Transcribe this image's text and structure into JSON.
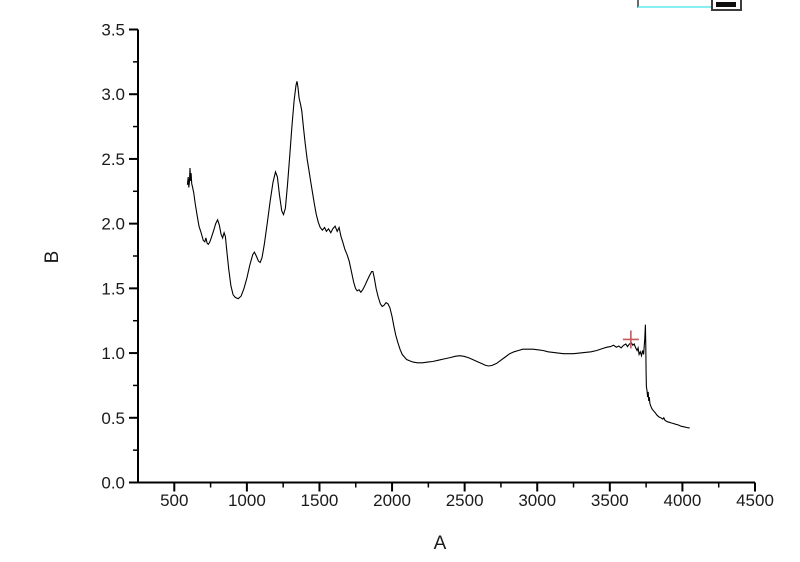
{
  "window": {
    "background": "#ffffff"
  },
  "overlay": {
    "annotation_box": {
      "underline_color": "#86efef",
      "border_color": "#6a6a6a"
    },
    "minimize_button": {
      "icon": "minus-dash",
      "border_color": "#3c3c3c",
      "glyph_color": "#0d0d0d"
    }
  },
  "chart_data": {
    "type": "line",
    "title": "",
    "xlabel": "A",
    "ylabel": "B",
    "xlim": [
      250,
      4500
    ],
    "ylim": [
      0,
      3.5
    ],
    "grid": false,
    "legend_position": "none",
    "axis_color": "#000000",
    "tick_style": "outward",
    "x_ticks": {
      "values": [
        500,
        1000,
        1500,
        2000,
        2500,
        3000,
        3500,
        4000,
        4500
      ],
      "labels": [
        "500",
        "1000",
        "1500",
        "2000",
        "2500",
        "3000",
        "3500",
        "4000",
        "4500"
      ],
      "minor": [
        750,
        1250,
        1750,
        2250,
        2750,
        3250,
        3750,
        4250
      ]
    },
    "y_ticks": {
      "values": [
        0,
        0.5,
        1.0,
        1.5,
        2.0,
        2.5,
        3.0,
        3.5
      ],
      "labels": [
        "0.0",
        "0.5",
        "1.0",
        "1.5",
        "2.0",
        "2.5",
        "3.0",
        "3.5"
      ],
      "minor": [
        0.25,
        0.75,
        1.25,
        1.75,
        2.25,
        2.75,
        3.25
      ]
    },
    "series": [
      {
        "name": "B",
        "color": "#000000",
        "points": [
          [
            590,
            2.3
          ],
          [
            596,
            2.36
          ],
          [
            600,
            2.28
          ],
          [
            605,
            2.33
          ],
          [
            608,
            2.43
          ],
          [
            612,
            2.33
          ],
          [
            616,
            2.39
          ],
          [
            620,
            2.31
          ],
          [
            626,
            2.28
          ],
          [
            634,
            2.24
          ],
          [
            645,
            2.15
          ],
          [
            658,
            2.06
          ],
          [
            670,
            1.98
          ],
          [
            682,
            1.94
          ],
          [
            692,
            1.9
          ],
          [
            700,
            1.87
          ],
          [
            710,
            1.86
          ],
          [
            718,
            1.89
          ],
          [
            726,
            1.85
          ],
          [
            734,
            1.84
          ],
          [
            745,
            1.86
          ],
          [
            758,
            1.9
          ],
          [
            772,
            1.95
          ],
          [
            785,
            2.0
          ],
          [
            798,
            2.03
          ],
          [
            810,
            1.99
          ],
          [
            822,
            1.92
          ],
          [
            833,
            1.89
          ],
          [
            843,
            1.93
          ],
          [
            852,
            1.9
          ],
          [
            862,
            1.79
          ],
          [
            875,
            1.65
          ],
          [
            890,
            1.52
          ],
          [
            905,
            1.45
          ],
          [
            920,
            1.43
          ],
          [
            940,
            1.42
          ],
          [
            960,
            1.44
          ],
          [
            980,
            1.5
          ],
          [
            1000,
            1.58
          ],
          [
            1020,
            1.68
          ],
          [
            1040,
            1.76
          ],
          [
            1052,
            1.78
          ],
          [
            1065,
            1.75
          ],
          [
            1080,
            1.71
          ],
          [
            1092,
            1.7
          ],
          [
            1105,
            1.74
          ],
          [
            1120,
            1.84
          ],
          [
            1140,
            2.0
          ],
          [
            1160,
            2.17
          ],
          [
            1180,
            2.32
          ],
          [
            1197,
            2.4
          ],
          [
            1210,
            2.36
          ],
          [
            1225,
            2.22
          ],
          [
            1240,
            2.1
          ],
          [
            1252,
            2.07
          ],
          [
            1265,
            2.12
          ],
          [
            1280,
            2.3
          ],
          [
            1295,
            2.52
          ],
          [
            1310,
            2.75
          ],
          [
            1325,
            2.95
          ],
          [
            1338,
            3.07
          ],
          [
            1345,
            3.1
          ],
          [
            1352,
            3.05
          ],
          [
            1360,
            2.97
          ],
          [
            1370,
            2.92
          ],
          [
            1378,
            2.87
          ],
          [
            1390,
            2.74
          ],
          [
            1402,
            2.62
          ],
          [
            1415,
            2.5
          ],
          [
            1428,
            2.41
          ],
          [
            1440,
            2.32
          ],
          [
            1452,
            2.24
          ],
          [
            1465,
            2.15
          ],
          [
            1478,
            2.07
          ],
          [
            1492,
            2.01
          ],
          [
            1505,
            1.97
          ],
          [
            1520,
            1.95
          ],
          [
            1535,
            1.97
          ],
          [
            1548,
            1.94
          ],
          [
            1562,
            1.96
          ],
          [
            1578,
            1.93
          ],
          [
            1592,
            1.96
          ],
          [
            1608,
            1.98
          ],
          [
            1622,
            1.94
          ],
          [
            1635,
            1.97
          ],
          [
            1648,
            1.9
          ],
          [
            1660,
            1.86
          ],
          [
            1675,
            1.8
          ],
          [
            1690,
            1.76
          ],
          [
            1705,
            1.71
          ],
          [
            1720,
            1.63
          ],
          [
            1735,
            1.55
          ],
          [
            1748,
            1.5
          ],
          [
            1760,
            1.48
          ],
          [
            1772,
            1.49
          ],
          [
            1785,
            1.47
          ],
          [
            1798,
            1.49
          ],
          [
            1812,
            1.52
          ],
          [
            1828,
            1.56
          ],
          [
            1845,
            1.6
          ],
          [
            1860,
            1.63
          ],
          [
            1868,
            1.63
          ],
          [
            1878,
            1.58
          ],
          [
            1890,
            1.5
          ],
          [
            1905,
            1.43
          ],
          [
            1920,
            1.38
          ],
          [
            1932,
            1.36
          ],
          [
            1945,
            1.37
          ],
          [
            1958,
            1.39
          ],
          [
            1972,
            1.38
          ],
          [
            1985,
            1.35
          ],
          [
            2000,
            1.28
          ],
          [
            2012,
            1.21
          ],
          [
            2025,
            1.14
          ],
          [
            2040,
            1.08
          ],
          [
            2055,
            1.03
          ],
          [
            2070,
            0.99
          ],
          [
            2085,
            0.97
          ],
          [
            2100,
            0.95
          ],
          [
            2120,
            0.94
          ],
          [
            2145,
            0.93
          ],
          [
            2175,
            0.925
          ],
          [
            2210,
            0.925
          ],
          [
            2245,
            0.93
          ],
          [
            2280,
            0.935
          ],
          [
            2320,
            0.945
          ],
          [
            2360,
            0.955
          ],
          [
            2400,
            0.965
          ],
          [
            2435,
            0.975
          ],
          [
            2465,
            0.98
          ],
          [
            2495,
            0.975
          ],
          [
            2525,
            0.965
          ],
          [
            2555,
            0.95
          ],
          [
            2585,
            0.935
          ],
          [
            2615,
            0.92
          ],
          [
            2645,
            0.905
          ],
          [
            2665,
            0.9
          ],
          [
            2690,
            0.905
          ],
          [
            2720,
            0.92
          ],
          [
            2750,
            0.945
          ],
          [
            2780,
            0.97
          ],
          [
            2810,
            0.995
          ],
          [
            2840,
            1.01
          ],
          [
            2870,
            1.02
          ],
          [
            2900,
            1.03
          ],
          [
            2935,
            1.03
          ],
          [
            2970,
            1.03
          ],
          [
            3005,
            1.025
          ],
          [
            3040,
            1.02
          ],
          [
            3075,
            1.01
          ],
          [
            3110,
            1.005
          ],
          [
            3145,
            1.0
          ],
          [
            3180,
            0.995
          ],
          [
            3215,
            0.995
          ],
          [
            3250,
            0.995
          ],
          [
            3290,
            1.0
          ],
          [
            3330,
            1.005
          ],
          [
            3370,
            1.01
          ],
          [
            3410,
            1.02
          ],
          [
            3450,
            1.035
          ],
          [
            3480,
            1.045
          ],
          [
            3505,
            1.05
          ],
          [
            3525,
            1.06
          ],
          [
            3545,
            1.045
          ],
          [
            3562,
            1.055
          ],
          [
            3578,
            1.04
          ],
          [
            3595,
            1.06
          ],
          [
            3610,
            1.07
          ],
          [
            3622,
            1.05
          ],
          [
            3635,
            1.07
          ],
          [
            3648,
            1.08
          ],
          [
            3658,
            1.06
          ],
          [
            3668,
            1.07
          ],
          [
            3678,
            1.04
          ],
          [
            3688,
            1.02
          ],
          [
            3695,
            1.04
          ],
          [
            3702,
            0.99
          ],
          [
            3710,
            1.01
          ],
          [
            3718,
            0.98
          ],
          [
            3726,
            1.02
          ],
          [
            3733,
            0.99
          ],
          [
            3740,
            1.1
          ],
          [
            3745,
            1.22
          ],
          [
            3748,
            1.05
          ],
          [
            3750,
            0.85
          ],
          [
            3752,
            0.74
          ],
          [
            3756,
            0.71
          ],
          [
            3760,
            0.66
          ],
          [
            3764,
            0.7
          ],
          [
            3768,
            0.63
          ],
          [
            3772,
            0.66
          ],
          [
            3776,
            0.61
          ],
          [
            3782,
            0.59
          ],
          [
            3790,
            0.57
          ],
          [
            3800,
            0.555
          ],
          [
            3812,
            0.54
          ],
          [
            3825,
            0.52
          ],
          [
            3840,
            0.505
          ],
          [
            3852,
            0.5
          ],
          [
            3865,
            0.49
          ],
          [
            3872,
            0.5
          ],
          [
            3880,
            0.48
          ],
          [
            3895,
            0.47
          ],
          [
            3910,
            0.465
          ],
          [
            3925,
            0.46
          ],
          [
            3940,
            0.455
          ],
          [
            3955,
            0.45
          ],
          [
            3970,
            0.445
          ],
          [
            3990,
            0.435
          ],
          [
            4010,
            0.43
          ],
          [
            4030,
            0.425
          ],
          [
            4050,
            0.42
          ]
        ]
      }
    ],
    "cursor_marker": {
      "shape": "cross",
      "x": 3645,
      "y": 1.105,
      "color": "#c85a5a"
    }
  }
}
